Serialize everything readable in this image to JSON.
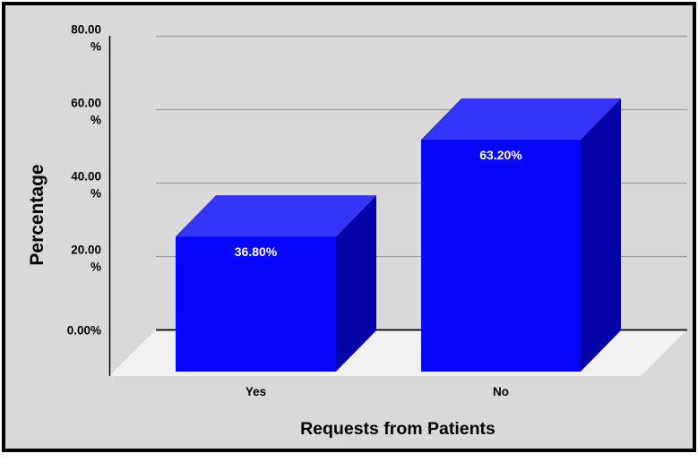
{
  "chart_data": {
    "type": "bar",
    "variant": "3d-column",
    "title": "",
    "xlabel": "Requests from Patients",
    "ylabel": "Percentage",
    "categories": [
      "Yes",
      "No"
    ],
    "values": [
      36.8,
      63.2
    ],
    "data_labels": [
      "36.80%",
      "63.20%"
    ],
    "ylim": [
      0,
      80
    ],
    "ytick_values": [
      80,
      60,
      40,
      20,
      0
    ],
    "ytick_labels": [
      [
        "80.00",
        "%"
      ],
      [
        "60.00",
        "%"
      ],
      [
        "40.00",
        "%"
      ],
      [
        "20.00",
        "%"
      ],
      [
        "0.00%"
      ]
    ],
    "grid": true,
    "legend": false
  },
  "colors": {
    "page": "#ffffff",
    "background": "#d9d9d9",
    "border": "#000000",
    "gridline": "#9e9e9e",
    "zero_line": "#000000",
    "axis_line": "#000000",
    "floor": "#f1f1f1",
    "bar_front": "#0505fa",
    "bar_top": "#3434f8",
    "bar_side": "#0404a8",
    "data_label_text": "#ffffff",
    "axis_text": "#000000"
  }
}
